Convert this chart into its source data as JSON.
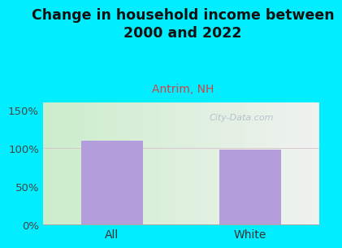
{
  "title": "Change in household income between\n2000 and 2022",
  "subtitle": "Antrim, NH",
  "categories": [
    "All",
    "White"
  ],
  "values": [
    110,
    98
  ],
  "bar_color": "#b39ddb",
  "title_fontsize": 12.5,
  "subtitle_fontsize": 10,
  "subtitle_color": "#cc4444",
  "tick_label_fontsize": 9.5,
  "ytick_labels": [
    "0%",
    "50%",
    "100%",
    "150%"
  ],
  "ytick_values": [
    0,
    50,
    100,
    150
  ],
  "ylim": [
    0,
    160
  ],
  "background_outer": "#00eeff",
  "watermark": "City-Data.com",
  "watermark_color": "#aabbcc",
  "grid_color": "#ddbbcc",
  "xlabel_fontsize": 10
}
